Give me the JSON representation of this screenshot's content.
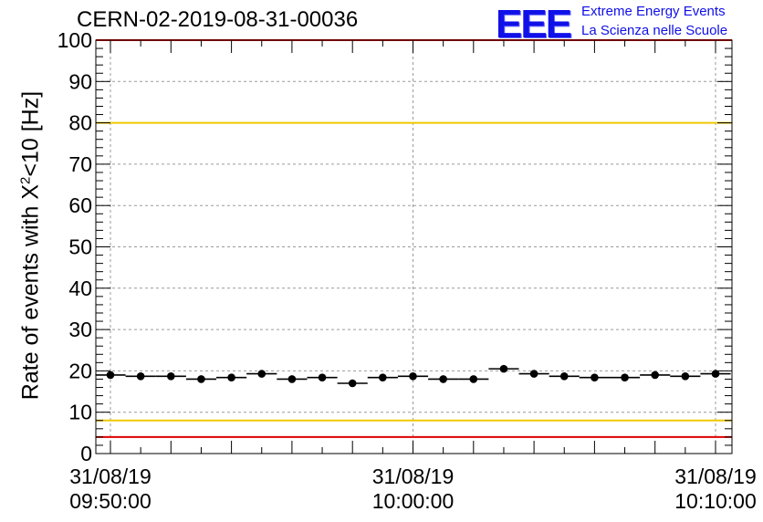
{
  "header": {
    "run_id": "CERN-02-2019-08-31-00036",
    "logo_text": "EEE",
    "logo_line1": "Extreme Energy Events",
    "logo_line2": "La Scienza nelle Scuole"
  },
  "colors": {
    "red_limit": "#e00000",
    "yellow_limit": "#f0c800",
    "logo": "#1010e8",
    "points": "#000000",
    "grid": "#9a9a9a"
  },
  "chart_data": {
    "type": "scatter",
    "title": "CERN-02-2019-08-31-00036",
    "ylabel_main": "Rate of events with X",
    "ylabel_sup": "2",
    "ylabel_tail": "<10 [Hz]",
    "ylim": [
      0,
      100
    ],
    "yticks": [
      0,
      10,
      20,
      30,
      40,
      50,
      60,
      70,
      80,
      90,
      100
    ],
    "xlim": [
      "2019-08-31 09:50:00",
      "2019-08-31 10:10:00"
    ],
    "xtick_labels": [
      {
        "date": "31/08/19",
        "time": "09:50:00"
      },
      {
        "date": "31/08/19",
        "time": "10:00:00"
      },
      {
        "date": "31/08/19",
        "time": "10:10:00"
      }
    ],
    "grid": true,
    "limit_lines": [
      {
        "value": 80,
        "color": "yellow"
      },
      {
        "value": 8,
        "color": "yellow"
      },
      {
        "value": 100,
        "color": "red"
      },
      {
        "value": 4,
        "color": "red"
      }
    ],
    "points": [
      {
        "t": "09:50:00",
        "y": 19.0
      },
      {
        "t": "09:51:00",
        "y": 18.7
      },
      {
        "t": "09:52:00",
        "y": 18.7
      },
      {
        "t": "09:53:00",
        "y": 18.0
      },
      {
        "t": "09:54:00",
        "y": 18.4
      },
      {
        "t": "09:55:00",
        "y": 19.3
      },
      {
        "t": "09:56:00",
        "y": 18.0
      },
      {
        "t": "09:57:00",
        "y": 18.4
      },
      {
        "t": "09:58:00",
        "y": 17.0
      },
      {
        "t": "09:59:00",
        "y": 18.4
      },
      {
        "t": "10:00:00",
        "y": 18.7
      },
      {
        "t": "10:01:00",
        "y": 18.0
      },
      {
        "t": "10:02:00",
        "y": 18.0
      },
      {
        "t": "10:03:00",
        "y": 20.5
      },
      {
        "t": "10:04:00",
        "y": 19.3
      },
      {
        "t": "10:05:00",
        "y": 18.7
      },
      {
        "t": "10:06:00",
        "y": 18.4
      },
      {
        "t": "10:07:00",
        "y": 18.4
      },
      {
        "t": "10:08:00",
        "y": 19.0
      },
      {
        "t": "10:09:00",
        "y": 18.7
      },
      {
        "t": "10:10:00",
        "y": 19.3
      }
    ]
  }
}
